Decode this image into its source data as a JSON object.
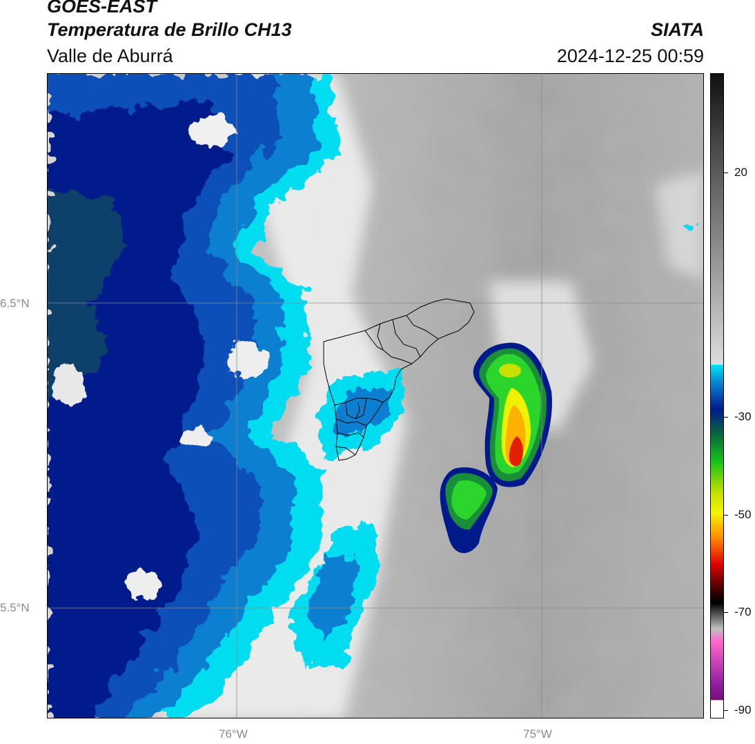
{
  "header": {
    "satellite": "GOES-EAST",
    "product": "Temperatura de Brillo CH13",
    "region": "Valle de Aburrá",
    "agency": "SIATA",
    "datetime": "2024-12-25 00:59"
  },
  "map": {
    "lat_labels": [
      "6.5°N",
      "5.5°N"
    ],
    "lon_labels": [
      "76°W",
      "75°W"
    ]
  },
  "colorbar": {
    "tick_labels": [
      "20",
      "-30",
      "-50",
      "-70",
      "-90"
    ],
    "colors": {
      "warm_black": "#111111",
      "gray_mid": "#8e8e8e",
      "light_gray": "#ececec",
      "cyan": "#00e5f5",
      "dark_blue": "#001a8c",
      "green": "#12c21a",
      "yellow": "#f5f500",
      "orange": "#ff8800",
      "red": "#e00000",
      "black": "#000000",
      "pink": "#ff66cc",
      "purple": "#8a1a9a"
    }
  }
}
